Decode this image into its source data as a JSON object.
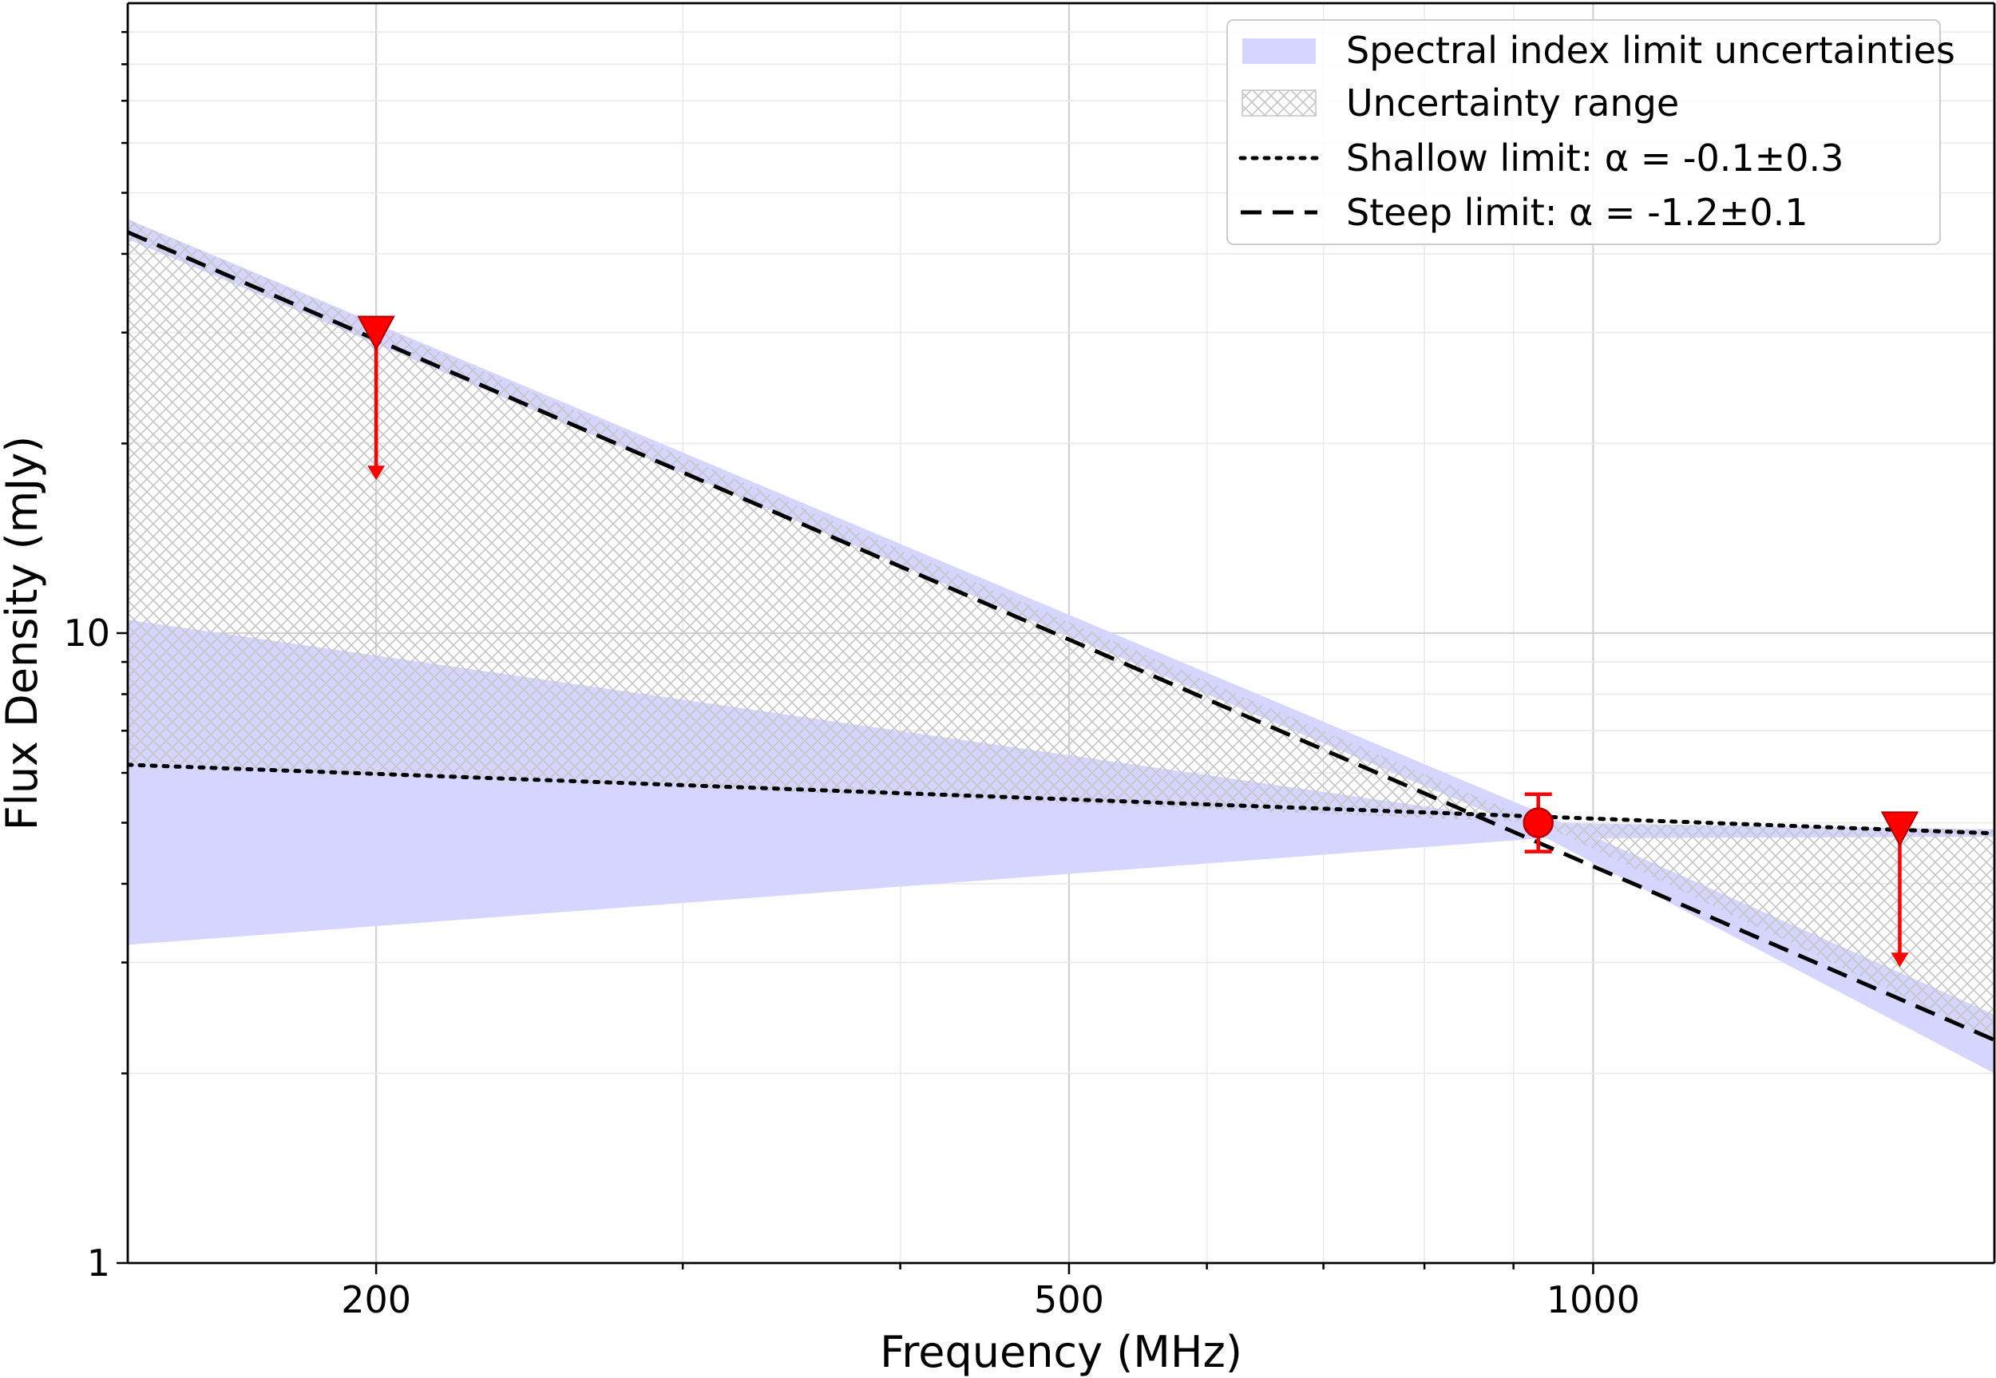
{
  "chart_data": {
    "type": "line",
    "title": "",
    "xlabel": "Frequency (MHz)",
    "ylabel": "Flux Density (mJy)",
    "xscale": "log",
    "yscale": "log",
    "xlim": [
      144,
      1700
    ],
    "ylim": [
      1,
      100
    ],
    "grid": true,
    "legend_position": "top-right",
    "xticks": [
      {
        "value": 200,
        "label": "200"
      },
      {
        "value": 500,
        "label": "500"
      },
      {
        "value": 1000,
        "label": "1000"
      }
    ],
    "yticks": [
      {
        "value": 1,
        "label": "1"
      },
      {
        "value": 10,
        "label": "10"
      }
    ],
    "series": [
      {
        "name": "Shallow limit: α = -0.1±0.3",
        "style": "dotted",
        "color": "#000000",
        "x": [
          144,
          1700
        ],
        "y": [
          6.18,
          4.81
        ]
      },
      {
        "name": "Steep limit: α = -1.2±0.1",
        "style": "dashed",
        "color": "#000000",
        "x": [
          144,
          1700
        ],
        "y": [
          43.3,
          2.26
        ]
      }
    ],
    "bands": [
      {
        "name": "Spectral index limit uncertainties",
        "fill": "#d5d5ff",
        "regions": [
          {
            "x": [
              144,
              930,
              1700
            ],
            "y_upper": [
              10.5,
              5.0,
              4.88
            ],
            "y_lower": [
              3.2,
              4.72,
              4.75
            ]
          },
          {
            "x": [
              144,
              930,
              1700
            ],
            "y_upper": [
              45.4,
              5.2,
              2.48
            ],
            "y_lower": [
              42.2,
              4.8,
              2.0
            ]
          }
        ]
      },
      {
        "name": "Uncertainty range",
        "hatch": "crosshatch",
        "color": "#c8c8c8",
        "x": [
          144,
          930,
          1700
        ],
        "y_upper": [
          45.4,
          5.0,
          4.88
        ],
        "y_lower": [
          6.18,
          5.0,
          2.26
        ]
      }
    ],
    "markers": [
      {
        "type": "upper_limit",
        "x": 200,
        "y": 30,
        "arrow_to": 17.5,
        "color": "#ff0000"
      },
      {
        "type": "detection",
        "x": 930,
        "y": 5.0,
        "err_low": 0.5,
        "err_high": 0.55,
        "color": "#ff0000"
      },
      {
        "type": "upper_limit",
        "x": 1500,
        "y": 4.9,
        "arrow_to": 2.95,
        "color": "#ff0000"
      }
    ]
  }
}
